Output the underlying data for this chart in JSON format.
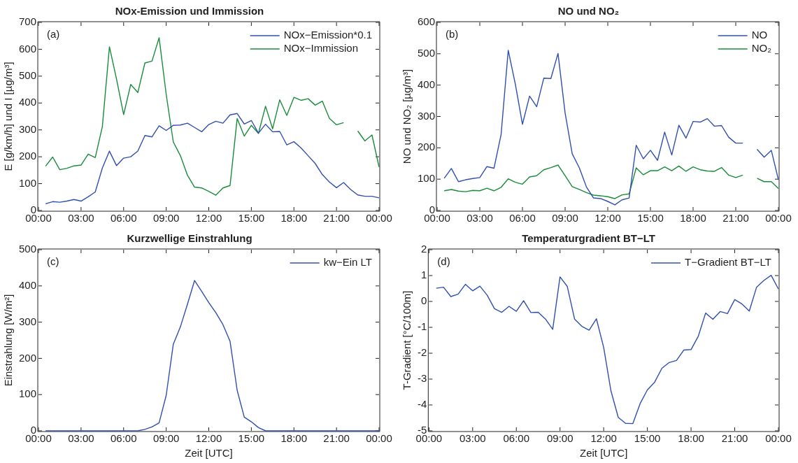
{
  "chart_data": [
    {
      "type": "line",
      "title": "NOx-Emission und Immission",
      "ylabel": "E [g/km/h] und I [µg/m³]",
      "annotations": [
        "(a)"
      ],
      "legend": "top right",
      "x": [
        0.5,
        1,
        1.5,
        2,
        2.5,
        3,
        3.5,
        4,
        4.5,
        5,
        5.5,
        6,
        6.5,
        7,
        7.5,
        8,
        8.5,
        9,
        9.5,
        10,
        10.5,
        11,
        11.5,
        12,
        12.5,
        13,
        13.5,
        14,
        14.5,
        15,
        15.5,
        16,
        16.5,
        17,
        17.5,
        18,
        18.5,
        19,
        19.5,
        20,
        20.5,
        21,
        21.5,
        22,
        22.5,
        23,
        23.5,
        24
      ],
      "xlim": [
        0,
        24
      ],
      "xticks": [
        {
          "value": 0,
          "label": "00:00"
        },
        {
          "value": 3,
          "label": "03:00"
        },
        {
          "value": 6,
          "label": "06:00"
        },
        {
          "value": 9,
          "label": "09:00"
        },
        {
          "value": 12,
          "label": "12:00"
        },
        {
          "value": 15,
          "label": "15:00"
        },
        {
          "value": 18,
          "label": "18:00"
        },
        {
          "value": 21,
          "label": "21:00"
        },
        {
          "value": 24,
          "label": "00:00"
        }
      ],
      "ylim": [
        0,
        700
      ],
      "yticks": [
        0,
        100,
        200,
        300,
        400,
        500,
        600,
        700
      ],
      "series": [
        {
          "name": "NOx−Emission*0.1",
          "color": "#3050b0",
          "values": [
            25,
            33,
            31,
            35,
            41,
            35,
            51,
            69,
            158,
            221,
            167,
            195,
            200,
            221,
            279,
            274,
            315,
            298,
            317,
            318,
            325,
            309,
            293,
            320,
            332,
            325,
            356,
            361,
            322,
            335,
            288,
            321,
            293,
            294,
            244,
            256,
            233,
            204,
            175,
            134,
            106,
            85,
            104,
            78,
            58,
            53,
            53,
            47
          ]
        },
        {
          "name": "NOx−Immission",
          "color": "#1a8c3a",
          "values": [
            165,
            199,
            152,
            157,
            166,
            169,
            210,
            197,
            312,
            609,
            489,
            357,
            469,
            439,
            549,
            556,
            643,
            432,
            255,
            204,
            131,
            87,
            84,
            71,
            57,
            84,
            93,
            342,
            277,
            317,
            287,
            388,
            304,
            412,
            354,
            421,
            410,
            416,
            392,
            407,
            343,
            319,
            327,
            null,
            296,
            259,
            281,
            162
          ]
        }
      ]
    },
    {
      "type": "line",
      "title": "NO und NO₂",
      "ylabel": "NO und NO₂ [µg/m³]",
      "annotations": [
        "(b)"
      ],
      "legend": "top right",
      "x": [
        0.5,
        1,
        1.5,
        2,
        2.5,
        3,
        3.5,
        4,
        4.5,
        5,
        5.5,
        6,
        6.5,
        7,
        7.5,
        8,
        8.5,
        9,
        9.5,
        10,
        10.5,
        11,
        11.5,
        12,
        12.5,
        13,
        13.5,
        14,
        14.5,
        15,
        15.5,
        16,
        16.5,
        17,
        17.5,
        18,
        18.5,
        19,
        19.5,
        20,
        20.5,
        21,
        21.5,
        22,
        22.5,
        23,
        23.5,
        24
      ],
      "xlim": [
        0,
        24
      ],
      "xticks": [
        {
          "value": 0,
          "label": "00:00"
        },
        {
          "value": 3,
          "label": "03:00"
        },
        {
          "value": 6,
          "label": "06:00"
        },
        {
          "value": 9,
          "label": "09:00"
        },
        {
          "value": 12,
          "label": "12:00"
        },
        {
          "value": 15,
          "label": "15:00"
        },
        {
          "value": 18,
          "label": "18:00"
        },
        {
          "value": 21,
          "label": "21:00"
        },
        {
          "value": 24,
          "label": "00:00"
        }
      ],
      "ylim": [
        0,
        600
      ],
      "yticks": [
        0,
        100,
        200,
        300,
        400,
        500,
        600
      ],
      "series": [
        {
          "name": "NO",
          "color": "#3050b0",
          "values": [
            103,
            134,
            92,
            98,
            102,
            105,
            140,
            135,
            243,
            511,
            403,
            275,
            365,
            331,
            422,
            421,
            501,
            311,
            181,
            136,
            75,
            40,
            38,
            29,
            18,
            34,
            40,
            208,
            165,
            192,
            160,
            250,
            177,
            272,
            231,
            284,
            282,
            293,
            269,
            271,
            234,
            215,
            215,
            null,
            195,
            170,
            192,
            98
          ]
        },
        {
          "name": "NO₂",
          "color": "#1a8c3a",
          "values": [
            63,
            67,
            62,
            60,
            64,
            63,
            71,
            63,
            74,
            101,
            90,
            84,
            107,
            111,
            130,
            137,
            145,
            111,
            76,
            67,
            57,
            49,
            47,
            44,
            38,
            50,
            53,
            136,
            114,
            127,
            127,
            139,
            127,
            142,
            125,
            139,
            130,
            126,
            125,
            137,
            113,
            105,
            113,
            null,
            103,
            92,
            92,
            70
          ]
        }
      ]
    },
    {
      "type": "line",
      "title": "Kurzwellige Einstrahlung",
      "xlabel": "Zeit [UTC]",
      "ylabel": "Einstrahlung [W/m²]",
      "annotations": [
        "(c)"
      ],
      "legend": "top right",
      "x": [
        0.5,
        1,
        1.5,
        2,
        2.5,
        3,
        3.5,
        4,
        4.5,
        5,
        5.5,
        6,
        6.5,
        7,
        7.5,
        8,
        8.5,
        9,
        9.5,
        10,
        10.5,
        11,
        11.5,
        12,
        12.5,
        13,
        13.5,
        14,
        14.5,
        15,
        15.5,
        16,
        16.5,
        17,
        17.5,
        18,
        18.5,
        19,
        19.5,
        20,
        20.5,
        21,
        21.5,
        22,
        22.5,
        23,
        23.5,
        24
      ],
      "xlim": [
        0,
        24
      ],
      "xticks": [
        {
          "value": 0,
          "label": "00:00"
        },
        {
          "value": 3,
          "label": "03:00"
        },
        {
          "value": 6,
          "label": "06:00"
        },
        {
          "value": 9,
          "label": "09:00"
        },
        {
          "value": 12,
          "label": "12:00"
        },
        {
          "value": 15,
          "label": "15:00"
        },
        {
          "value": 18,
          "label": "18:00"
        },
        {
          "value": 21,
          "label": "21:00"
        },
        {
          "value": 24,
          "label": "00:00"
        }
      ],
      "ylim": [
        0,
        500
      ],
      "yticks": [
        0,
        100,
        200,
        300,
        400,
        500
      ],
      "series": [
        {
          "name": "kw−Ein LT",
          "color": "#3050b0",
          "values": [
            0,
            0,
            0,
            0,
            0,
            0,
            0,
            0,
            0,
            0,
            0,
            0,
            0,
            0,
            4,
            11,
            22,
            98,
            239,
            287,
            350,
            415,
            385,
            354,
            326,
            293,
            247,
            112,
            38,
            25,
            9,
            0,
            0,
            0,
            0,
            0,
            0,
            0,
            0,
            0,
            0,
            0,
            0,
            0,
            0,
            0,
            0,
            0
          ]
        }
      ]
    },
    {
      "type": "line",
      "title": "Temperaturgradient BT−LT",
      "xlabel": "Zeit [UTC]",
      "ylabel": "T-Gradient [°C/100m]",
      "annotations": [
        "(d)"
      ],
      "legend": "top right",
      "x": [
        0.5,
        1,
        1.5,
        2,
        2.5,
        3,
        3.5,
        4,
        4.5,
        5,
        5.5,
        6,
        6.5,
        7,
        7.5,
        8,
        8.5,
        9,
        9.5,
        10,
        10.5,
        11,
        11.5,
        12,
        12.5,
        13,
        13.5,
        14,
        14.5,
        15,
        15.5,
        16,
        16.5,
        17,
        17.5,
        18,
        18.5,
        19,
        19.5,
        20,
        20.5,
        21,
        21.5,
        22,
        22.5,
        23,
        23.5,
        24
      ],
      "xlim": [
        0,
        24
      ],
      "xticks": [
        {
          "value": 0,
          "label": "00:00"
        },
        {
          "value": 3,
          "label": "03:00"
        },
        {
          "value": 6,
          "label": "06:00"
        },
        {
          "value": 9,
          "label": "09:00"
        },
        {
          "value": 12,
          "label": "12:00"
        },
        {
          "value": 15,
          "label": "15:00"
        },
        {
          "value": 18,
          "label": "18:00"
        },
        {
          "value": 21,
          "label": "21:00"
        },
        {
          "value": 24,
          "label": "00:00"
        }
      ],
      "ylim": [
        -5,
        2
      ],
      "yticks": [
        -5,
        -4,
        -3,
        -2,
        -1,
        0,
        1,
        2
      ],
      "series": [
        {
          "name": "T−Gradient BT−LT",
          "color": "#3050b0",
          "values": [
            0.51,
            0.55,
            0.19,
            0.28,
            0.66,
            0.41,
            0.59,
            0.24,
            -0.28,
            -0.42,
            -0.19,
            -0.38,
            0.03,
            -0.43,
            -0.42,
            -0.68,
            -1.08,
            0.95,
            0.58,
            -0.68,
            -0.96,
            -1.11,
            -0.67,
            -1.78,
            -3.46,
            -4.48,
            -4.71,
            -4.72,
            -3.95,
            -3.42,
            -3.12,
            -2.58,
            -2.36,
            -2.28,
            -1.88,
            -1.86,
            -1.34,
            -0.45,
            -0.69,
            -0.39,
            -0.47,
            0.07,
            -0.1,
            -0.37,
            0.55,
            0.81,
            1.01,
            0.48
          ]
        }
      ]
    }
  ]
}
